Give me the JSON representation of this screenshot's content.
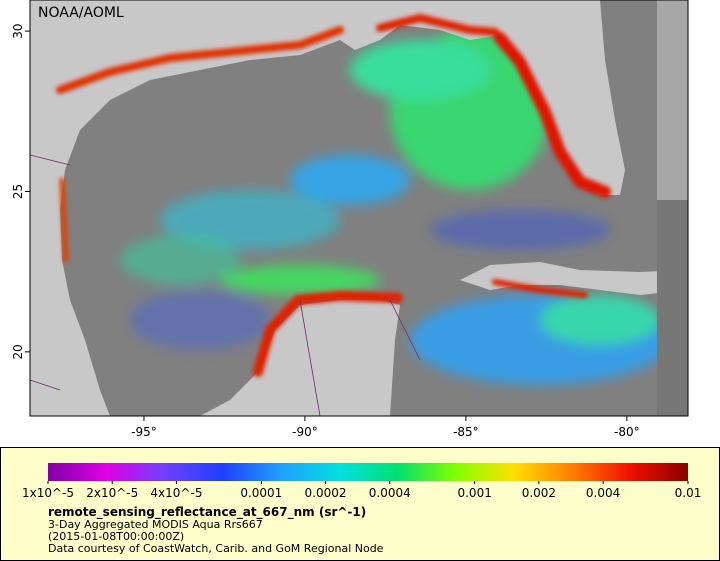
{
  "chart_data": {
    "type": "map",
    "title": "NOAA/AOML",
    "xlim": [
      -98.54,
      -78.1
    ],
    "ylim": [
      18.0,
      30.97
    ],
    "xticks": [
      {
        "value": -95,
        "label": "-95°"
      },
      {
        "value": -90,
        "label": "-90°"
      },
      {
        "value": -85,
        "label": "-85°"
      },
      {
        "value": -80,
        "label": "-80°"
      }
    ],
    "yticks": [
      20,
      25,
      30
    ],
    "colorbar": {
      "log_scale": true,
      "lim": [
        1e-05,
        0.01
      ],
      "colors": [
        "#7f00a6",
        "#e000e8",
        "#7040ff",
        "#1f3fff",
        "#1fa0ff",
        "#00e0e0",
        "#00e070",
        "#80ff00",
        "#ffe000",
        "#ff8000",
        "#f01000",
        "#8a0000"
      ],
      "ticks": [
        {
          "value": 1e-05,
          "label": "1x10^-5"
        },
        {
          "value": 2e-05,
          "label": "2x10^-5"
        },
        {
          "value": 4e-05,
          "label": "4x10^-5"
        },
        0.0001,
        0.0002,
        0.0004,
        0.001,
        0.002,
        0.004,
        0.01
      ]
    },
    "legend": {
      "variable": "remote_sensing_reflectance_at_667_nm (sr^-1)",
      "description": "3-Day Aggregated MODIS Aqua Rrs667",
      "time": "(2015-01-08T00:00:00Z)",
      "credit": "Data courtesy of CoastWatch, Carib. and GoM Regional Node"
    }
  }
}
